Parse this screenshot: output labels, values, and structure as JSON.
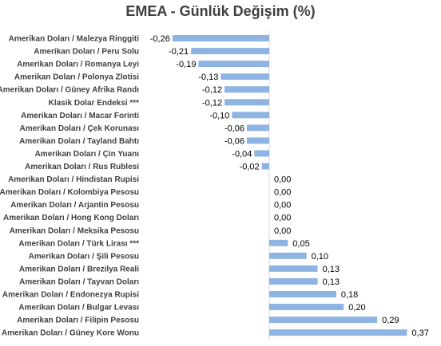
{
  "chart_data": {
    "type": "bar",
    "orientation": "horizontal",
    "title": "EMEA - Günlük Değişim (%)",
    "bar_color": "#8eb4e3",
    "categories": [
      "Amerikan Doları / Malezya Ringgiti",
      "Amerikan Doları / Peru Solu",
      "Amerikan Doları / Romanya Leyi",
      "Amerikan Doları / Polonya Zlotisi",
      "Amerikan Doları / Güney Afrika Randı",
      "Klasik Dolar Endeksi ***",
      "Amerikan Doları / Macar Forinti",
      "Amerikan Doları / Çek Korunası",
      "Amerikan Doları / Tayland Bahtı",
      "Amerikan Doları / Çin Yuanı",
      "Amerikan Doları / Rus Rublesi",
      "Amerikan Doları / Hindistan Rupisi",
      "Amerikan Doları / Kolombiya Pesosu",
      "Amerikan Doları / Arjantin Pesosu",
      "Amerikan Doları / Hong Kong Doları",
      "Amerikan Doları / Meksika Pesosu",
      "Amerikan Doları / Türk Lirası ***",
      "Amerikan Doları / Şili Pesosu",
      "Amerikan Doları / Brezilya Reali",
      "Amerikan Doları / Tayvan Doları",
      "Amerikan Doları / Endonezya Rupisi",
      "Amerikan Doları / Bulgar Levası",
      "Amerikan Doları / Filipin Pesosu",
      "Amerikan Doları / Güney Kore Wonu"
    ],
    "values": [
      -0.26,
      -0.21,
      -0.19,
      -0.13,
      -0.12,
      -0.12,
      -0.1,
      -0.06,
      -0.06,
      -0.04,
      -0.02,
      0.0,
      0.0,
      0.0,
      0.0,
      0.0,
      0.05,
      0.1,
      0.13,
      0.13,
      0.18,
      0.2,
      0.29,
      0.37
    ],
    "value_labels": [
      "-0,26",
      "-0,21",
      "-0,19",
      "-0,13",
      "-0,12",
      "-0,12",
      "-0,10",
      "-0,06",
      "-0,06",
      "-0,04",
      "-0,02",
      "0,00",
      "0,00",
      "0,00",
      "0,00",
      "0,00",
      "0,05",
      "0,10",
      "0,13",
      "0,13",
      "0,18",
      "0,20",
      "0,29",
      "0,37"
    ],
    "grid": false,
    "legend": "none"
  }
}
